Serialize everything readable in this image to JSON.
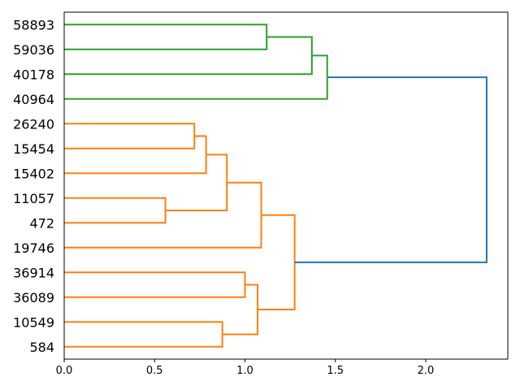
{
  "figure": {
    "background": "#ffffff",
    "axis_color": "#000000"
  },
  "chart_data": {
    "type": "dendrogram",
    "orientation": "right",
    "title": "",
    "xlabel": "",
    "ylabel": "",
    "grid": false,
    "leaf_labels": [
      "58893",
      "59036",
      "40178",
      "40964",
      "26240",
      "15454",
      "15402",
      "11057",
      "472",
      "19746",
      "36914",
      "36089",
      "10549",
      "584"
    ],
    "merges": [
      {
        "id": "M0",
        "children": [
          "L4",
          "L5"
        ],
        "distance": 0.72,
        "color": "#ff7f0e"
      },
      {
        "id": "M1",
        "children": [
          "M0",
          "L6"
        ],
        "distance": 0.785,
        "color": "#ff7f0e"
      },
      {
        "id": "M2",
        "children": [
          "L7",
          "L8"
        ],
        "distance": 0.56,
        "color": "#ff7f0e"
      },
      {
        "id": "M3",
        "children": [
          "M1",
          "M2"
        ],
        "distance": 0.9,
        "color": "#ff7f0e"
      },
      {
        "id": "M4",
        "children": [
          "M3",
          "L9"
        ],
        "distance": 1.09,
        "color": "#ff7f0e"
      },
      {
        "id": "M5",
        "children": [
          "L10",
          "L11"
        ],
        "distance": 1.0,
        "color": "#ff7f0e"
      },
      {
        "id": "M6",
        "children": [
          "L12",
          "L13"
        ],
        "distance": 0.875,
        "color": "#ff7f0e"
      },
      {
        "id": "M7",
        "children": [
          "M5",
          "M6"
        ],
        "distance": 1.07,
        "color": "#ff7f0e"
      },
      {
        "id": "M8",
        "children": [
          "M4",
          "M7"
        ],
        "distance": 1.275,
        "color": "#ff7f0e"
      },
      {
        "id": "M9",
        "children": [
          "L0",
          "L1"
        ],
        "distance": 1.12,
        "color": "#2ca02c"
      },
      {
        "id": "M10",
        "children": [
          "M9",
          "L2"
        ],
        "distance": 1.37,
        "color": "#2ca02c"
      },
      {
        "id": "M11",
        "children": [
          "M10",
          "L3"
        ],
        "distance": 1.455,
        "color": "#2ca02c"
      },
      {
        "id": "M12",
        "children": [
          "M11",
          "M8"
        ],
        "distance": 2.337,
        "color": "#1f77b4"
      }
    ],
    "x_ticks": [
      {
        "value": 0.0,
        "label": "0.0"
      },
      {
        "value": 0.5,
        "label": "0.5"
      },
      {
        "value": 1.0,
        "label": "1.0"
      },
      {
        "value": 1.5,
        "label": "1.5"
      },
      {
        "value": 2.0,
        "label": "2.0"
      }
    ],
    "xlim": [
      0,
      2.454
    ],
    "legend": null,
    "colors": {
      "cluster_orange": "#ff7f0e",
      "cluster_green": "#2ca02c",
      "root_link_above_threshold": "#1f77b4"
    }
  }
}
